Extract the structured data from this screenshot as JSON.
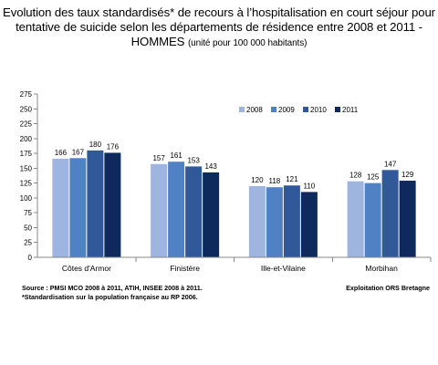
{
  "title": {
    "main": "Evolution des taux standardisés* de recours à l’hospitalisation en court séjour pour tentative de suicide selon les départements de résidence entre 2008 et 2011 - HOMMES",
    "unit": "(unité pour 100 000 habitants)"
  },
  "chart_data": {
    "type": "bar",
    "title": "Evolution des taux standardisés* de recours à l’hospitalisation en court séjour pour tentative de suicide selon les départements de résidence entre 2008 et 2011 - HOMMES",
    "categories": [
      "Côtes d'Armor",
      "Finistère",
      "Ille-et-Vilaine",
      "Morbihan"
    ],
    "series": [
      {
        "name": "2008",
        "values": [
          166,
          157,
          120,
          128
        ],
        "color": "#9db5df"
      },
      {
        "name": "2009",
        "values": [
          167,
          161,
          118,
          125
        ],
        "color": "#4f81c4"
      },
      {
        "name": "2010",
        "values": [
          180,
          153,
          121,
          147
        ],
        "color": "#31599a"
      },
      {
        "name": "2011",
        "values": [
          176,
          143,
          110,
          129
        ],
        "color": "#0e2a5c"
      }
    ],
    "ylim": [
      0,
      275
    ],
    "yticks": [
      0,
      25,
      50,
      75,
      100,
      125,
      150,
      175,
      200,
      225,
      250,
      275
    ],
    "grid": false,
    "legend": "top-right",
    "data_labels": true
  },
  "footer": {
    "source": "Source : PMSI MCO 2008 à 2011, ATIH, INSEE 2008 à 2011.",
    "note": "*Standardisation sur la population française au RP 2006.",
    "credit": "Exploitation ORS Bretagne"
  }
}
